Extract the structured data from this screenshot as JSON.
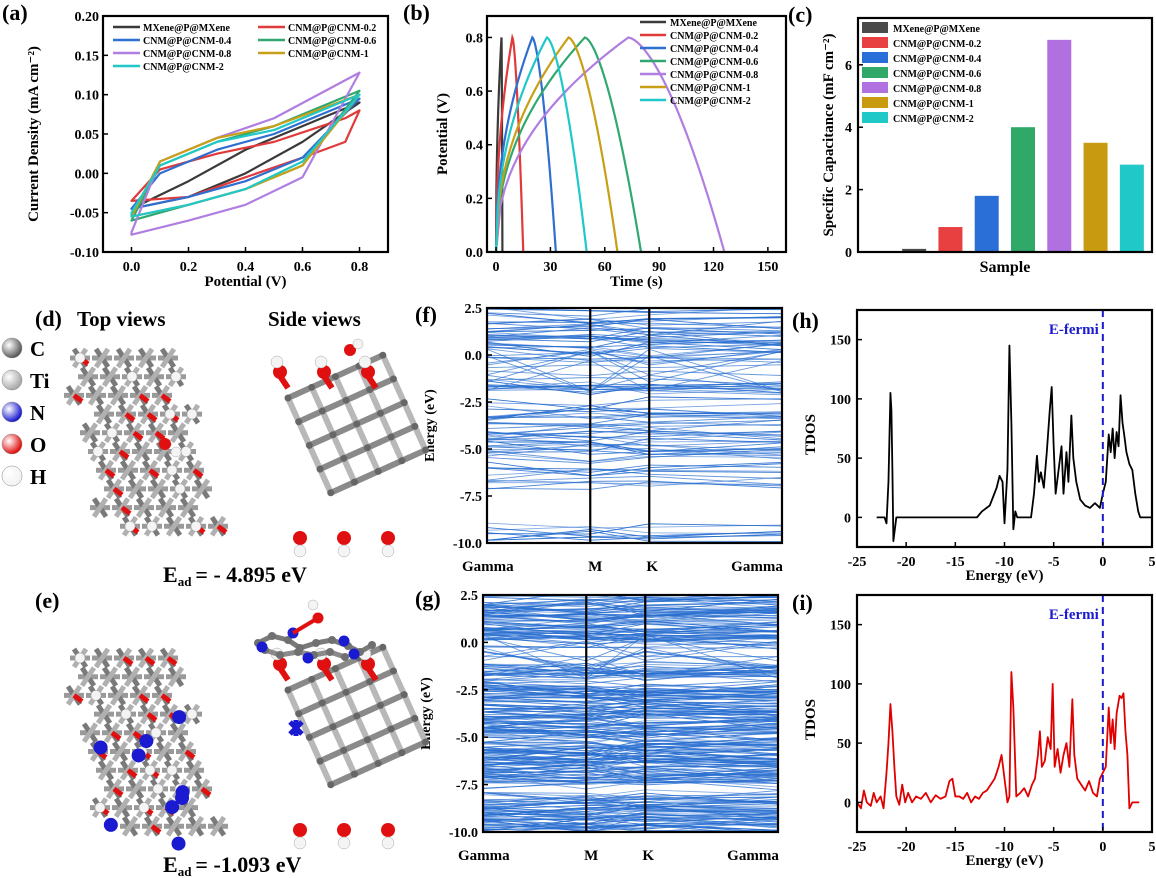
{
  "figure": {
    "panel_labels": {
      "a": "(a)",
      "b": "(b)",
      "c": "(c)",
      "d": "(d)",
      "e": "(e)",
      "f": "(f)",
      "g": "(g)",
      "h": "(h)",
      "i": "(i)"
    }
  },
  "structures": {
    "top_views_label": "Top views",
    "side_views_label": "Side views",
    "legend": [
      {
        "symbol": "C",
        "color": "#5a5a5a"
      },
      {
        "symbol": "Ti",
        "color": "#a8a8a8"
      },
      {
        "symbol": "N",
        "color": "#1a1ad0"
      },
      {
        "symbol": "O",
        "color": "#e01010"
      },
      {
        "symbol": "H",
        "color": "#f2f2f2"
      }
    ],
    "d_energy": {
      "prefix": "E",
      "sub": "ad",
      "value": "= - 4.895 eV"
    },
    "e_energy": {
      "prefix": "E",
      "sub": "ad",
      "value": "= -1.093 eV"
    }
  },
  "chart_data": [
    {
      "id": "a",
      "type": "line",
      "title": "",
      "xlabel": "Potential (V)",
      "ylabel": "Current Density (mA cm⁻²)",
      "xlim": [
        -0.1,
        0.9
      ],
      "ylim": [
        -0.1,
        0.2
      ],
      "xticks": [
        0.0,
        0.2,
        0.4,
        0.6,
        0.8
      ],
      "xtick_labels": [
        "0.0",
        "0.2",
        "0.4",
        "0.6",
        "0.8"
      ],
      "yticks": [
        -0.1,
        -0.05,
        0.0,
        0.05,
        0.1,
        0.15,
        0.2
      ],
      "ytick_labels": [
        "-0.10",
        "-0.05",
        "0.00",
        "0.05",
        "0.10",
        "0.15",
        "0.20"
      ],
      "legend_position": "top",
      "series": [
        {
          "name": "MXene@P@MXene",
          "color": "#3a3a3a",
          "upper": [
            [
              0,
              -0.045
            ],
            [
              0.2,
              -0.01
            ],
            [
              0.4,
              0.03
            ],
            [
              0.6,
              0.06
            ],
            [
              0.8,
              0.09
            ]
          ],
          "lower": [
            [
              0,
              -0.045
            ],
            [
              0.2,
              -0.03
            ],
            [
              0.4,
              0.0
            ],
            [
              0.6,
              0.04
            ],
            [
              0.8,
              0.09
            ]
          ]
        },
        {
          "name": "CNM@P@CNM-0.2",
          "color": "#e03a3a",
          "upper": [
            [
              0,
              -0.035
            ],
            [
              0.1,
              0.005
            ],
            [
              0.3,
              0.025
            ],
            [
              0.5,
              0.04
            ],
            [
              0.75,
              0.07
            ],
            [
              0.8,
              0.08
            ]
          ],
          "lower": [
            [
              0,
              -0.035
            ],
            [
              0.2,
              -0.03
            ],
            [
              0.4,
              -0.005
            ],
            [
              0.6,
              0.02
            ],
            [
              0.75,
              0.04
            ],
            [
              0.8,
              0.08
            ]
          ]
        },
        {
          "name": "CNM@P@CNM-0.4",
          "color": "#2f6fd0",
          "upper": [
            [
              0,
              -0.045
            ],
            [
              0.1,
              0.0
            ],
            [
              0.3,
              0.03
            ],
            [
              0.5,
              0.05
            ],
            [
              0.8,
              0.095
            ]
          ],
          "lower": [
            [
              0,
              -0.045
            ],
            [
              0.2,
              -0.03
            ],
            [
              0.4,
              -0.01
            ],
            [
              0.6,
              0.02
            ],
            [
              0.8,
              0.095
            ]
          ]
        },
        {
          "name": "CNM@P@CNM-0.6",
          "color": "#30a870",
          "upper": [
            [
              0,
              -0.06
            ],
            [
              0.1,
              0.01
            ],
            [
              0.3,
              0.04
            ],
            [
              0.5,
              0.06
            ],
            [
              0.8,
              0.105
            ]
          ],
          "lower": [
            [
              0,
              -0.06
            ],
            [
              0.2,
              -0.04
            ],
            [
              0.4,
              -0.02
            ],
            [
              0.6,
              0.01
            ],
            [
              0.8,
              0.105
            ]
          ]
        },
        {
          "name": "CNM@P@CNM-0.8",
          "color": "#b07ee0",
          "upper": [
            [
              0,
              -0.075
            ],
            [
              0.1,
              0.015
            ],
            [
              0.3,
              0.045
            ],
            [
              0.5,
              0.07
            ],
            [
              0.8,
              0.128
            ]
          ],
          "lower": [
            [
              0,
              -0.078
            ],
            [
              0.2,
              -0.06
            ],
            [
              0.4,
              -0.04
            ],
            [
              0.6,
              -0.005
            ],
            [
              0.8,
              0.128
            ]
          ]
        },
        {
          "name": "CNM@P@CNM-1",
          "color": "#c8a018",
          "upper": [
            [
              0,
              -0.055
            ],
            [
              0.1,
              0.015
            ],
            [
              0.3,
              0.045
            ],
            [
              0.5,
              0.06
            ],
            [
              0.8,
              0.1
            ]
          ],
          "lower": [
            [
              0,
              -0.055
            ],
            [
              0.2,
              -0.04
            ],
            [
              0.4,
              -0.02
            ],
            [
              0.6,
              0.01
            ],
            [
              0.8,
              0.1
            ]
          ]
        },
        {
          "name": "CNM@P@CNM-2",
          "color": "#20c8c8",
          "upper": [
            [
              0,
              -0.05
            ],
            [
              0.1,
              0.01
            ],
            [
              0.3,
              0.04
            ],
            [
              0.5,
              0.055
            ],
            [
              0.8,
              0.1
            ]
          ],
          "lower": [
            [
              0,
              -0.055
            ],
            [
              0.2,
              -0.04
            ],
            [
              0.4,
              -0.02
            ],
            [
              0.6,
              0.015
            ],
            [
              0.8,
              0.1
            ]
          ]
        }
      ]
    },
    {
      "id": "b",
      "type": "line",
      "title": "",
      "xlabel": "Time (s)",
      "ylabel": "Potential (V)",
      "xlim": [
        -5,
        160
      ],
      "ylim": [
        0,
        0.88
      ],
      "xticks": [
        0,
        30,
        60,
        90,
        120,
        150
      ],
      "xtick_labels": [
        "0",
        "30",
        "60",
        "90",
        "120",
        "150"
      ],
      "yticks": [
        0.0,
        0.2,
        0.4,
        0.6,
        0.8
      ],
      "ytick_labels": [
        "0.0",
        "0.2",
        "0.4",
        "0.6",
        "0.8"
      ],
      "legend_position": "top-right",
      "series": [
        {
          "name": "MXene@P@MXene",
          "color": "#3a3a3a",
          "charge_end": 3,
          "discharge_end": 3.5
        },
        {
          "name": "CNM@P@CNM-0.2",
          "color": "#e03a3a",
          "charge_end": 9,
          "discharge_end": 15
        },
        {
          "name": "CNM@P@CNM-0.4",
          "color": "#2f6fd0",
          "charge_end": 20,
          "discharge_end": 33
        },
        {
          "name": "CNM@P@CNM-0.6",
          "color": "#30a870",
          "charge_end": 49,
          "discharge_end": 80
        },
        {
          "name": "CNM@P@CNM-0.8",
          "color": "#b07ee0",
          "charge_end": 73,
          "discharge_end": 126
        },
        {
          "name": "CNM@P@CNM-1",
          "color": "#c8a018",
          "charge_end": 40,
          "discharge_end": 67
        },
        {
          "name": "CNM@P@CNM-2",
          "color": "#20c8c8",
          "charge_end": 28,
          "discharge_end": 50
        }
      ]
    },
    {
      "id": "c",
      "type": "bar",
      "title": "",
      "xlabel": "Sample",
      "ylabel": "Specific Capacitance (mF cm⁻²)",
      "ylim": [
        0,
        7.5
      ],
      "yticks": [
        0,
        2,
        4,
        6
      ],
      "ytick_labels": [
        "0",
        "2",
        "4",
        "6"
      ],
      "legend_position": "top-left",
      "categories": [
        "MXene@P@MXene",
        "CNM@P@CNM-0.2",
        "CNM@P@CNM-0.4",
        "CNM@P@CNM-0.6",
        "CNM@P@CNM-0.8",
        "CNM@P@CNM-1",
        "CNM@P@CNM-2"
      ],
      "values": [
        0.1,
        0.8,
        1.8,
        4.0,
        6.8,
        3.5,
        2.8
      ],
      "colors": [
        "#4a4a4a",
        "#e84040",
        "#2a6fd8",
        "#30a868",
        "#b070e0",
        "#c89a10",
        "#20c8c8"
      ]
    },
    {
      "id": "f",
      "type": "line",
      "title": "",
      "xlabel": "",
      "ylabel": "Energy (eV)",
      "ylim": [
        -10.0,
        2.5
      ],
      "yticks": [
        2.5,
        0.0,
        -2.5,
        -5.0,
        -7.5,
        -10.0
      ],
      "ytick_labels": [
        "2.5",
        "0.0",
        "-2.5",
        "-5.0",
        "-7.5",
        "-10.0"
      ],
      "kpoints": [
        "Gamma",
        "M",
        "K",
        "Gamma"
      ],
      "kpoint_positions": [
        0,
        0.35,
        0.55,
        1.0
      ],
      "color": "#2a6fd0",
      "dense_regions": [
        [
          0.0,
          2.5
        ],
        [
          -2.0,
          -1.3
        ],
        [
          -3.5,
          -2.5
        ],
        [
          -4.5,
          -3.8
        ],
        [
          -5.6,
          -4.6
        ],
        [
          -6.8,
          -6.0
        ],
        [
          -9.6,
          -9.0
        ]
      ]
    },
    {
      "id": "g",
      "type": "line",
      "title": "",
      "xlabel": "",
      "ylabel": "Energy (eV)",
      "ylim": [
        -10.0,
        2.5
      ],
      "yticks": [
        2.5,
        0.0,
        -2.5,
        -5.0,
        -7.5,
        -10.0
      ],
      "ytick_labels": [
        "2.5",
        "0.0",
        "-2.5",
        "-5.0",
        "-7.5",
        "-10.0"
      ],
      "kpoints": [
        "Gamma",
        "M",
        "K",
        "Gamma"
      ],
      "kpoint_positions": [
        0,
        0.35,
        0.55,
        1.0
      ],
      "color": "#2a6fd0",
      "dense_regions": [
        [
          0.0,
          2.5
        ],
        [
          -2.0,
          -1.3
        ],
        [
          -7.5,
          -2.3
        ],
        [
          -10.0,
          -8.0
        ]
      ]
    },
    {
      "id": "h",
      "type": "line",
      "title": "",
      "xlabel": "Energy (eV)",
      "ylabel": "TDOS",
      "xlim": [
        -25,
        5
      ],
      "ylim": [
        -25,
        175
      ],
      "xticks": [
        -25,
        -20,
        -15,
        -10,
        -5,
        0,
        5
      ],
      "xtick_labels": [
        "-25",
        "-20",
        "-15",
        "-10",
        "-5",
        "0",
        "5"
      ],
      "yticks": [
        0,
        50,
        100,
        150
      ],
      "ytick_labels": [
        "0",
        "50",
        "100",
        "150"
      ],
      "annotation": "E-fermi",
      "annotation_color": "#1a1ad0",
      "fermi_level": 0,
      "color": "#000000",
      "x": [
        -23,
        -22.2,
        -22,
        -21.8,
        -21.6,
        -21.5,
        -21.4,
        -21.3,
        -21,
        -12.8,
        -12.3,
        -11.5,
        -10.8,
        -10.5,
        -10.2,
        -10,
        -9.7,
        -9.5,
        -9.3,
        -9.1,
        -8.9,
        -8.7,
        -7.3,
        -7,
        -6.7,
        -6.5,
        -6.3,
        -6,
        -5.7,
        -5.4,
        -5.2,
        -5,
        -4.8,
        -4.5,
        -4.2,
        -4,
        -3.7,
        -3.5,
        -3.2,
        -3,
        -2.7,
        -2.3,
        -1.8,
        -1.3,
        -0.8,
        -0.3,
        0,
        0.3,
        0.6,
        0.8,
        1.0,
        1.2,
        1.4,
        1.6,
        1.8,
        2.0,
        2.2,
        2.4,
        2.7,
        3.0,
        3.3,
        3.6,
        3.8,
        5
      ],
      "y": [
        0,
        0,
        -5,
        30,
        105,
        90,
        40,
        -20,
        0,
        0,
        5,
        10,
        25,
        35,
        30,
        -5,
        40,
        145,
        80,
        -10,
        5,
        0,
        0,
        20,
        52,
        30,
        38,
        25,
        55,
        90,
        110,
        60,
        20,
        40,
        60,
        20,
        55,
        30,
        86,
        50,
        30,
        15,
        10,
        8,
        12,
        8,
        20,
        30,
        70,
        55,
        75,
        50,
        72,
        60,
        103,
        80,
        68,
        55,
        45,
        40,
        20,
        5,
        0,
        0
      ]
    },
    {
      "id": "i",
      "type": "line",
      "title": "",
      "xlabel": "Energy (eV)",
      "ylabel": "TDOS",
      "xlim": [
        -25,
        5
      ],
      "ylim": [
        -25,
        175
      ],
      "xticks": [
        -25,
        -20,
        -15,
        -10,
        -5,
        0,
        5
      ],
      "xtick_labels": [
        "-25",
        "-20",
        "-15",
        "-10",
        "-5",
        "0",
        "5"
      ],
      "yticks": [
        0,
        50,
        100,
        150
      ],
      "ytick_labels": [
        "0",
        "50",
        "100",
        "150"
      ],
      "annotation": "E-fermi",
      "annotation_color": "#1a1ad0",
      "fermi_level": 0,
      "color": "#e00000",
      "x": [
        -25,
        -24.6,
        -24.3,
        -24,
        -23.6,
        -23.3,
        -23,
        -22.6,
        -22.3,
        -22,
        -21.8,
        -21.6,
        -21.4,
        -21.2,
        -21,
        -20.7,
        -20.4,
        -20.1,
        -19.8,
        -19.4,
        -19,
        -18.5,
        -18,
        -17.5,
        -17,
        -16.5,
        -16,
        -15.6,
        -15.3,
        -15,
        -14.6,
        -14.2,
        -13.8,
        -13.4,
        -13,
        -12.6,
        -12.2,
        -11.8,
        -11.4,
        -11,
        -10.6,
        -10.3,
        -10,
        -9.7,
        -9.5,
        -9.3,
        -9.1,
        -8.8,
        -8.4,
        -8,
        -7.6,
        -7.2,
        -6.9,
        -6.6,
        -6.4,
        -6.2,
        -5.9,
        -5.6,
        -5.3,
        -5.1,
        -4.9,
        -4.6,
        -4.3,
        -4,
        -3.7,
        -3.4,
        -3.1,
        -2.9,
        -2.6,
        -2.2,
        -1.8,
        -1.4,
        -1.0,
        -0.6,
        -0.3,
        0,
        0.3,
        0.6,
        0.8,
        1.0,
        1.2,
        1.4,
        1.7,
        1.9,
        2.1,
        2.3,
        2.5,
        2.7,
        3.0,
        3.7
      ],
      "y": [
        0,
        -5,
        10,
        0,
        -3,
        8,
        0,
        5,
        -5,
        25,
        50,
        83,
        60,
        30,
        5,
        -2,
        15,
        0,
        8,
        0,
        5,
        3,
        8,
        0,
        6,
        3,
        5,
        18,
        20,
        5,
        5,
        3,
        8,
        0,
        5,
        3,
        8,
        10,
        15,
        20,
        30,
        40,
        20,
        0,
        5,
        110,
        80,
        5,
        8,
        12,
        5,
        15,
        20,
        40,
        60,
        30,
        35,
        55,
        45,
        100,
        30,
        45,
        25,
        40,
        50,
        30,
        87,
        40,
        20,
        15,
        10,
        18,
        8,
        5,
        20,
        25,
        30,
        80,
        50,
        70,
        45,
        75,
        90,
        88,
        92,
        60,
        40,
        -5,
        0,
        0
      ]
    }
  ]
}
